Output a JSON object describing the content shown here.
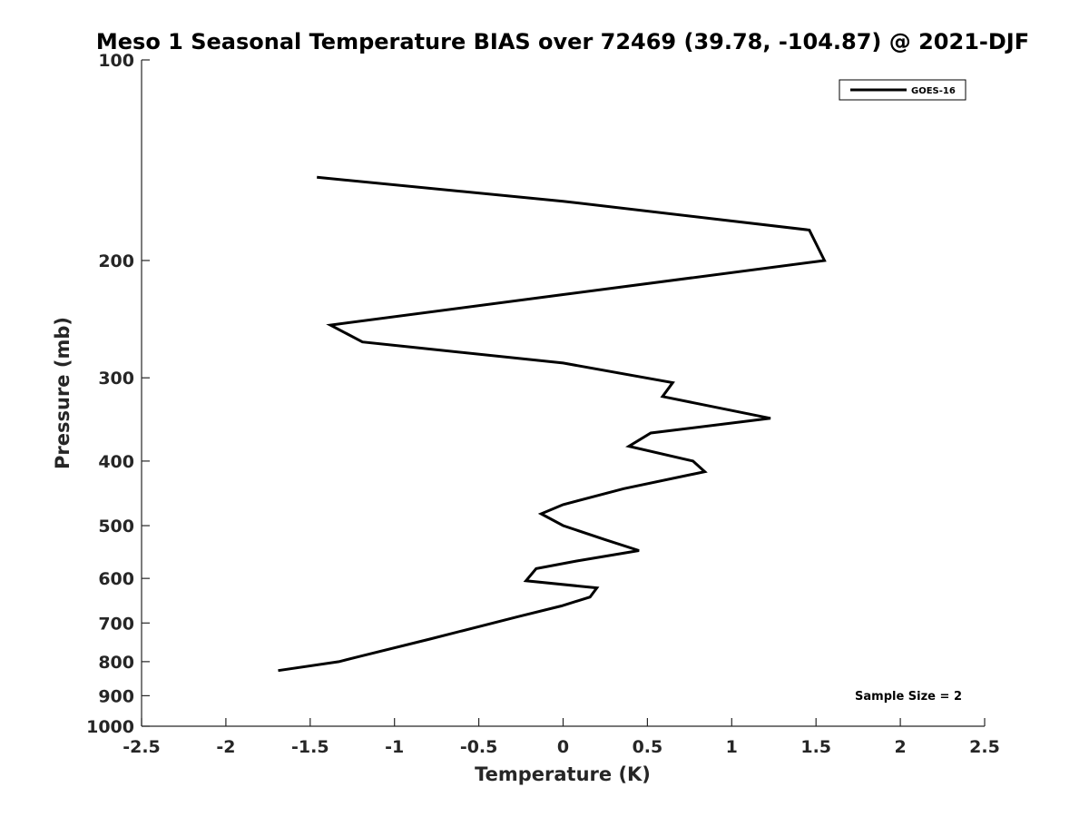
{
  "chart_data": {
    "type": "line",
    "title": "Meso 1 Seasonal Temperature BIAS over 72469 (39.78, -104.87) @ 2021-DJF",
    "xlabel": "Temperature (K)",
    "ylabel": "Pressure (mb)",
    "xlim": [
      -2.5,
      2.5
    ],
    "ylim": [
      1000,
      100
    ],
    "y_scale": "log",
    "x_ticks": [
      -2.5,
      -2,
      -1.5,
      -1,
      -0.5,
      0,
      0.5,
      1,
      1.5,
      2,
      2.5
    ],
    "x_tick_labels": [
      "-2.5",
      "-2",
      "-1.5",
      "-1",
      "-0.5",
      "0",
      "0.5",
      "1",
      "1.5",
      "2",
      "2.5"
    ],
    "y_ticks": [
      100,
      200,
      300,
      400,
      500,
      600,
      700,
      800,
      900,
      1000
    ],
    "y_tick_labels": [
      "100",
      "200",
      "300",
      "400",
      "500",
      "600",
      "700",
      "800",
      "900",
      "1000"
    ],
    "grid": false,
    "legend": {
      "placement": "top-right",
      "entries": [
        "GOES-16"
      ]
    },
    "annotation": "Sample Size = 2",
    "series": [
      {
        "name": "GOES-16",
        "color": "#000000",
        "points": [
          [
            -1.46,
            150
          ],
          [
            0.0,
            163
          ],
          [
            1.46,
            180
          ],
          [
            1.55,
            200
          ],
          [
            0.0,
            225
          ],
          [
            -1.38,
            250
          ],
          [
            -1.19,
            265
          ],
          [
            0.0,
            285
          ],
          [
            0.65,
            305
          ],
          [
            0.59,
            320
          ],
          [
            1.23,
            345
          ],
          [
            0.52,
            363
          ],
          [
            0.39,
            380
          ],
          [
            0.77,
            400
          ],
          [
            0.84,
            415
          ],
          [
            0.36,
            440
          ],
          [
            0.0,
            465
          ],
          [
            -0.13,
            480
          ],
          [
            0.0,
            500
          ],
          [
            0.25,
            525
          ],
          [
            0.45,
            545
          ],
          [
            0.08,
            565
          ],
          [
            -0.16,
            580
          ],
          [
            -0.22,
            605
          ],
          [
            0.2,
            620
          ],
          [
            0.16,
            640
          ],
          [
            -0.01,
            660
          ],
          [
            -0.27,
            685
          ],
          [
            -0.79,
            740
          ],
          [
            -1.2,
            785
          ],
          [
            -1.33,
            800
          ],
          [
            -1.69,
            825
          ]
        ]
      }
    ]
  }
}
